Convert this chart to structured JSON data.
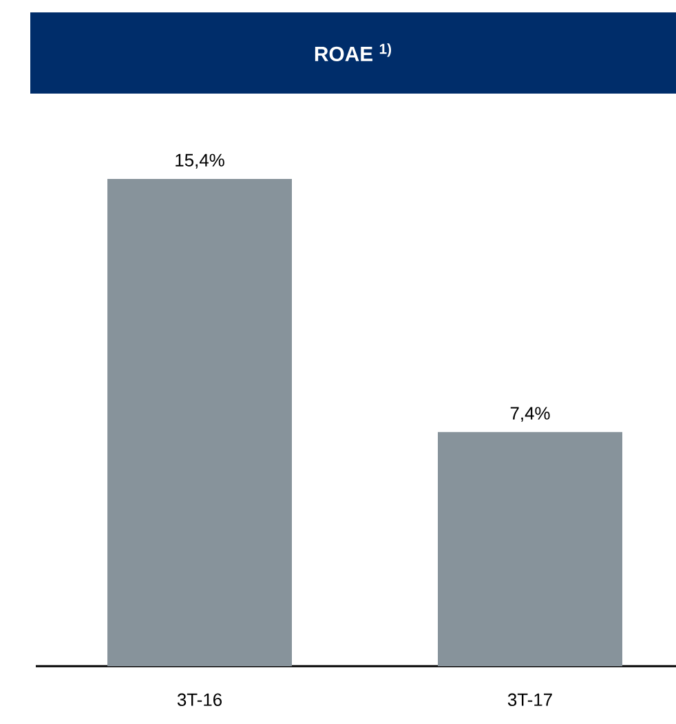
{
  "chart_data": {
    "type": "bar",
    "title": "ROAE $^{1)}$",
    "categories": [
      "3T-16",
      "3T-17"
    ],
    "values": [
      15.4,
      7.4
    ],
    "value_labels": [
      "15,4%",
      "7,4%"
    ],
    "color": "#87939b"
  }
}
